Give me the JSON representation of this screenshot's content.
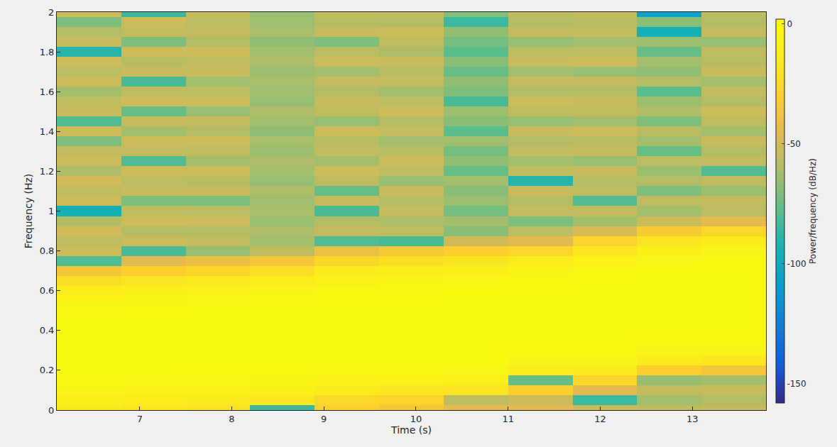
{
  "chart_data": {
    "type": "heatmap",
    "x_label": "Time (s)",
    "y_label": "Frequency (Hz)",
    "colorbar_title": "Power/frequency (dB/Hz)",
    "x": [
      6.45,
      7.15,
      7.85,
      8.55,
      9.25,
      9.95,
      10.65,
      11.35,
      12.05,
      12.75,
      13.45
    ],
    "y": [
      0,
      0.05,
      0.1,
      0.15,
      0.2,
      0.25,
      0.3,
      0.35,
      0.4,
      0.45,
      0.5,
      0.55,
      0.6,
      0.65,
      0.7,
      0.75,
      0.8,
      0.85,
      0.9,
      0.95,
      1,
      1.05,
      1.1,
      1.15,
      1.2,
      1.25,
      1.3,
      1.35,
      1.4,
      1.45,
      1.5,
      1.55,
      1.6,
      1.65,
      1.7,
      1.75,
      1.8,
      1.85,
      1.9,
      1.95,
      2
    ],
    "z_by_time": [
      [
        -15,
        -10,
        -6,
        -3,
        -1,
        0,
        0,
        0,
        0,
        -1,
        -3,
        -6,
        -12,
        -22,
        -35,
        -80,
        -52,
        -55,
        -50,
        -58,
        -95,
        -52,
        -55,
        -50,
        -60,
        -52,
        -54,
        -70,
        -51,
        -80,
        -53,
        -55,
        -62,
        -52,
        -56,
        -51,
        -90,
        -53,
        -58,
        -70,
        -52
      ],
      [
        -17,
        -12,
        -7,
        -4,
        -1,
        0,
        0,
        0,
        0,
        0,
        -2,
        -5,
        -10,
        -18,
        -30,
        -45,
        -82,
        -52,
        -58,
        -51,
        -55,
        -70,
        -53,
        -56,
        -51,
        -80,
        -54,
        -52,
        -62,
        -53,
        -75,
        -51,
        -55,
        -82,
        -53,
        -57,
        -51,
        -70,
        -54,
        -52,
        -85
      ],
      [
        -20,
        -14,
        -8,
        -4,
        -2,
        0,
        0,
        0,
        0,
        0,
        -1,
        -4,
        -8,
        -15,
        -26,
        -40,
        -65,
        -54,
        -58,
        -52,
        -56,
        -70,
        -53,
        -57,
        -52,
        -62,
        -55,
        -52,
        -58,
        -54,
        -65,
        -52,
        -56,
        -62,
        -53,
        -55,
        -52,
        -58,
        -54,
        -56,
        -53
      ],
      [
        -85,
        -16,
        -9,
        -5,
        -2,
        0,
        0,
        0,
        0,
        0,
        0,
        -2,
        -6,
        -12,
        -22,
        -35,
        -55,
        -62,
        -60,
        -64,
        -61,
        -63,
        -60,
        -65,
        -62,
        -60,
        -64,
        -61,
        -66,
        -62,
        -60,
        -65,
        -63,
        -61,
        -64,
        -60,
        -62,
        -66,
        -61,
        -63,
        -65
      ],
      [
        -30,
        -25,
        -14,
        -7,
        -3,
        -1,
        0,
        0,
        0,
        0,
        0,
        -1,
        -3,
        -7,
        -14,
        -25,
        -40,
        -80,
        -54,
        -58,
        -82,
        -53,
        -75,
        -55,
        -52,
        -62,
        -54,
        -57,
        -52,
        -65,
        -55,
        -53,
        -58,
        -54,
        -62,
        -52,
        -56,
        -70,
        -53,
        -57,
        -54
      ],
      [
        -35,
        -28,
        -16,
        -8,
        -3,
        -1,
        0,
        0,
        0,
        0,
        0,
        0,
        -2,
        -5,
        -11,
        -20,
        -34,
        -82,
        -55,
        -60,
        -54,
        -58,
        -53,
        -65,
        -55,
        -52,
        -57,
        -62,
        -54,
        -58,
        -52,
        -56,
        -62,
        -54,
        -57,
        -53,
        -59,
        -55,
        -52,
        -58,
        -54
      ],
      [
        -45,
        -55,
        -18,
        -9,
        -4,
        -1,
        0,
        0,
        0,
        0,
        0,
        0,
        -1,
        -4,
        -9,
        -17,
        -30,
        -50,
        -68,
        -62,
        -72,
        -64,
        -68,
        -62,
        -75,
        -66,
        -72,
        -63,
        -78,
        -68,
        -64,
        -82,
        -70,
        -66,
        -75,
        -68,
        -78,
        -72,
        -66,
        -85,
        -70
      ],
      [
        -45,
        -52,
        -30,
        -75,
        -12,
        -5,
        -2,
        0,
        0,
        0,
        0,
        0,
        0,
        -2,
        -6,
        -13,
        -25,
        -45,
        -56,
        -70,
        -54,
        -58,
        -53,
        -90,
        -55,
        -62,
        -54,
        -58,
        -53,
        -65,
        -55,
        -52,
        -58,
        -54,
        -62,
        -53,
        -56,
        -65,
        -54,
        -58,
        -55
      ],
      [
        -52,
        -85,
        -45,
        -25,
        -14,
        -6,
        -2,
        -1,
        0,
        0,
        0,
        0,
        0,
        -1,
        -3,
        -8,
        -16,
        -28,
        -48,
        -62,
        -54,
        -80,
        -55,
        -58,
        -53,
        -65,
        -54,
        -57,
        -52,
        -62,
        -55,
        -53,
        -58,
        -54,
        -65,
        -52,
        -56,
        -62,
        -54,
        -57,
        -53
      ],
      [
        -55,
        -62,
        -54,
        -65,
        -30,
        -14,
        -5,
        -2,
        0,
        0,
        0,
        0,
        0,
        0,
        -1,
        -4,
        -9,
        -18,
        -32,
        -52,
        -62,
        -55,
        -70,
        -58,
        -64,
        -56,
        -75,
        -62,
        -57,
        -70,
        -59,
        -64,
        -78,
        -58,
        -66,
        -62,
        -75,
        -64,
        -95,
        -68,
        -105
      ],
      [
        -54,
        -58,
        -53,
        -62,
        -35,
        -16,
        -6,
        -2,
        -1,
        0,
        0,
        0,
        0,
        0,
        0,
        -2,
        -6,
        -13,
        -25,
        -45,
        -56,
        -54,
        -64,
        -55,
        -80,
        -54,
        -58,
        -53,
        -62,
        -55,
        -52,
        -58,
        -54,
        -62,
        -53,
        -57,
        -55,
        -65,
        -54,
        -58,
        -56
      ]
    ],
    "xlim": [
      6.1,
      13.8
    ],
    "xticks": [
      7,
      8,
      9,
      10,
      11,
      12,
      13
    ],
    "ylim": [
      0,
      2
    ],
    "yticks": [
      0,
      0.2,
      0.4,
      0.6,
      0.8,
      1,
      1.2,
      1.4,
      1.6,
      1.8,
      2
    ],
    "zlim": [
      -158,
      2
    ],
    "zticks": [
      0,
      -50,
      -100,
      -150
    ],
    "grid": false
  }
}
